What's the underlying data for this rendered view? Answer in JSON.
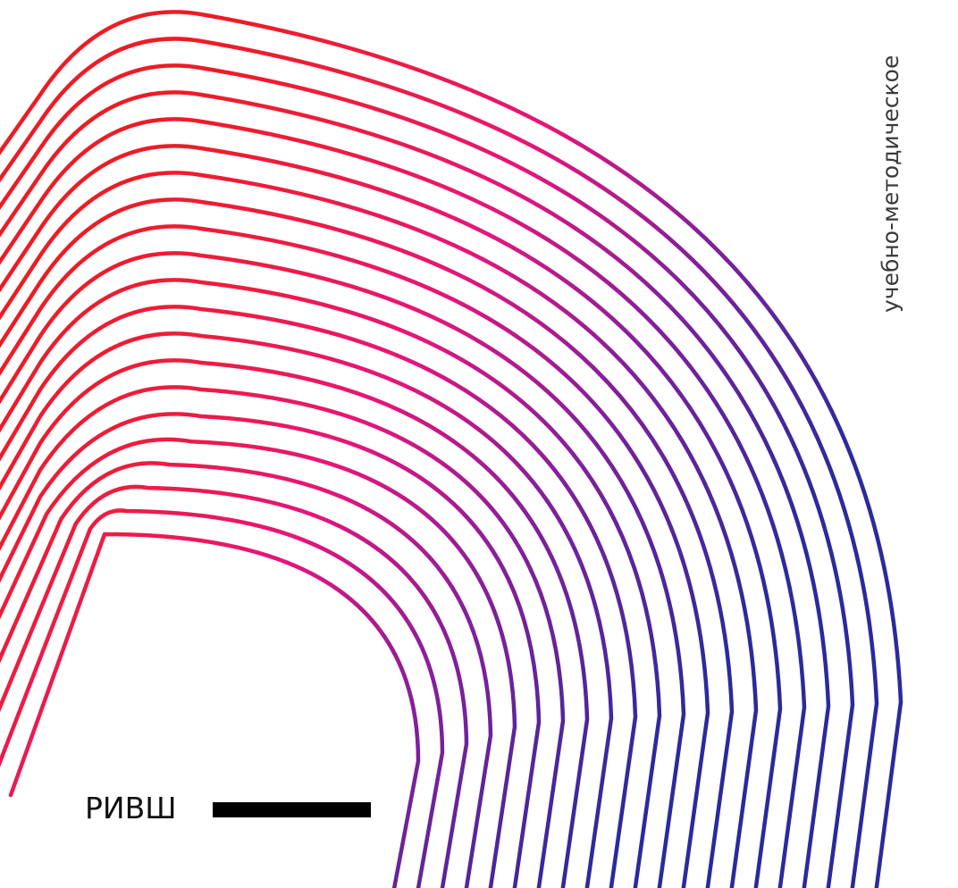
{
  "cover": {
    "vertical_text": "учебно-методическое",
    "publisher": "РИВШ"
  },
  "colors": {
    "background": "#ffffff",
    "line_start": "#ed1c24",
    "line_mid": "#e6157a",
    "line_end": "#2b2a9c",
    "bar": "#000000",
    "text": "#3a3a3a"
  },
  "decoration": {
    "line_count": 21
  }
}
